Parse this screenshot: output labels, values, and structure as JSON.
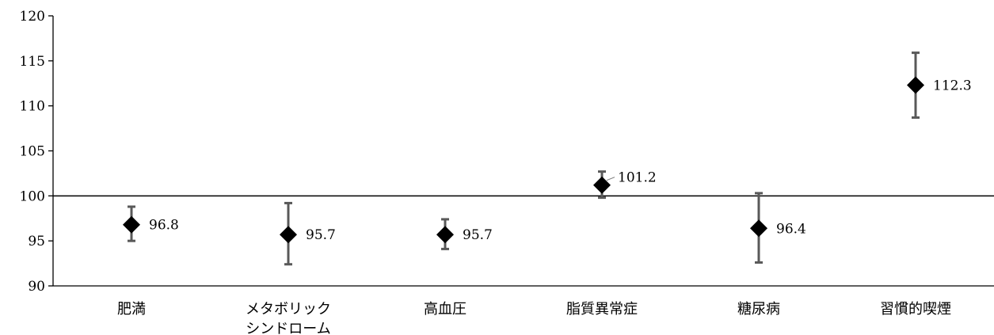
{
  "chart_data": {
    "type": "scatter",
    "title": "",
    "xlabel": "",
    "ylabel": "",
    "ylim": [
      90,
      120
    ],
    "yticks": [
      "90",
      "95",
      "100",
      "105",
      "110",
      "115",
      "120"
    ],
    "reference_line": 100,
    "grid": false,
    "categories": [
      {
        "lines": [
          "肥満"
        ]
      },
      {
        "lines": [
          "メタボリック",
          "シンドローム"
        ]
      },
      {
        "lines": [
          "高血圧"
        ]
      },
      {
        "lines": [
          "脂質異常症"
        ]
      },
      {
        "lines": [
          "糖尿病"
        ]
      },
      {
        "lines": [
          "習慣的喫煙"
        ]
      }
    ],
    "points": [
      {
        "value": 96.8,
        "low": 95.0,
        "high": 98.8,
        "label": "96.8"
      },
      {
        "value": 95.7,
        "low": 92.4,
        "high": 99.2,
        "label": "95.7"
      },
      {
        "value": 95.7,
        "low": 94.1,
        "high": 97.4,
        "label": "95.7"
      },
      {
        "value": 101.2,
        "low": 99.8,
        "high": 102.7,
        "label": "101.2"
      },
      {
        "value": 96.4,
        "low": 92.6,
        "high": 100.3,
        "label": "96.4"
      },
      {
        "value": 112.3,
        "low": 108.7,
        "high": 115.9,
        "label": "112.3"
      }
    ],
    "colors": {
      "marker": "#000000",
      "error_bar": "#595959",
      "axis": "#000000"
    }
  }
}
